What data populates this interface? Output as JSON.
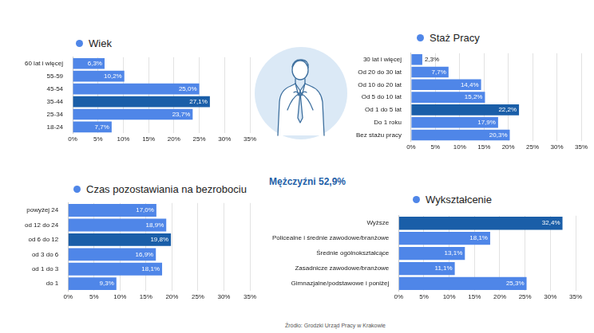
{
  "chart_data": [
    {
      "type": "bar",
      "orientation": "horizontal",
      "title": "Wiek",
      "categories": [
        "60 lat i więcej",
        "55-59",
        "45-54",
        "35-44",
        "25-34",
        "18-24"
      ],
      "values": [
        6.3,
        10.2,
        25.0,
        27.1,
        23.7,
        7.7
      ],
      "value_labels": [
        "6,3%",
        "10,2%",
        "25,0%",
        "27,1%",
        "23,7%",
        "7,7%"
      ],
      "colors": [
        "#4f86e8",
        "#4f86e8",
        "#4f86e8",
        "#1a5ea8",
        "#4f86e8",
        "#4f86e8"
      ],
      "xlim": [
        0,
        35
      ],
      "xticks": [
        {
          "value": 0,
          "label": "0%"
        },
        {
          "value": 5,
          "label": "5%"
        },
        {
          "value": 10,
          "label": "10%"
        },
        {
          "value": 15,
          "label": "15%"
        },
        {
          "value": 20,
          "label": "20%"
        },
        {
          "value": 25,
          "label": "25%"
        },
        {
          "value": 30,
          "label": "30%"
        },
        {
          "value": 35,
          "label": "35%"
        }
      ],
      "grid": true,
      "data_labels": true
    },
    {
      "type": "bar",
      "orientation": "horizontal",
      "title": "Staż Pracy",
      "categories": [
        "30 lat i więcej",
        "Od 20 do 30 lat",
        "Od 10 do 20 lat",
        "Od 5 do 10 lat",
        "Od 1 do 5 lat",
        "Do 1 roku",
        "Bez stażu pracy"
      ],
      "values": [
        2.3,
        7.7,
        14.4,
        15.2,
        22.2,
        17.9,
        20.3
      ],
      "value_labels": [
        "2,3%",
        "7,7%",
        "14,4%",
        "15,2%",
        "22,2%",
        "17,9%",
        "20,3%"
      ],
      "colors": [
        "#4f86e8",
        "#4f86e8",
        "#4f86e8",
        "#4f86e8",
        "#1a5ea8",
        "#4f86e8",
        "#4f86e8"
      ],
      "xlim": [
        0,
        35
      ],
      "xticks": [
        {
          "value": 0,
          "label": "0%"
        },
        {
          "value": 5,
          "label": "5%"
        },
        {
          "value": 10,
          "label": "10%"
        },
        {
          "value": 15,
          "label": "15%"
        },
        {
          "value": 20,
          "label": "20%"
        },
        {
          "value": 25,
          "label": "25%"
        },
        {
          "value": 30,
          "label": "30%"
        },
        {
          "value": 35,
          "label": "35%"
        }
      ],
      "grid": true,
      "data_labels": true
    },
    {
      "type": "bar",
      "orientation": "horizontal",
      "title": "Czas pozostawiania na bezrobociu",
      "categories": [
        "powyżej 24",
        "od 12 do 24",
        "od 6 do 12",
        "od 3 do 6",
        "od 1 do 3",
        "do 1"
      ],
      "values": [
        17.0,
        18.9,
        19.8,
        16.9,
        18.1,
        9.3
      ],
      "value_labels": [
        "17,0%",
        "18,9%",
        "19,8%",
        "16,9%",
        "18,1%",
        "9,3%"
      ],
      "colors": [
        "#4f86e8",
        "#4f86e8",
        "#1a5ea8",
        "#4f86e8",
        "#4f86e8",
        "#4f86e8"
      ],
      "xlim": [
        0,
        35
      ],
      "xticks": [
        {
          "value": 0,
          "label": "0%"
        },
        {
          "value": 5,
          "label": "5%"
        },
        {
          "value": 10,
          "label": "10%"
        },
        {
          "value": 15,
          "label": "15%"
        },
        {
          "value": 20,
          "label": "20%"
        },
        {
          "value": 25,
          "label": "25%"
        },
        {
          "value": 30,
          "label": "30%"
        },
        {
          "value": 35,
          "label": "35%"
        }
      ],
      "grid": true,
      "data_labels": true
    },
    {
      "type": "bar",
      "orientation": "horizontal",
      "title": "Wykształcenie",
      "categories": [
        "Wyższe",
        "Policealne i średnie zawodowe/branżowe",
        "Średnie ogólnokształcące",
        "Zasadnicze zawodowe/branżowe",
        "Gimnazjalne/podstawowe i poniżej"
      ],
      "values": [
        32.4,
        18.1,
        13.1,
        11.1,
        25.3
      ],
      "value_labels": [
        "32,4%",
        "18,1%",
        "13,1%",
        "11,1%",
        "25,3%"
      ],
      "colors": [
        "#1a5ea8",
        "#4f86e8",
        "#4f86e8",
        "#4f86e8",
        "#4f86e8"
      ],
      "xlim": [
        0,
        35
      ],
      "xticks": [
        {
          "value": 0,
          "label": "0%"
        },
        {
          "value": 5,
          "label": "5%"
        },
        {
          "value": 10,
          "label": "10%"
        },
        {
          "value": 15,
          "label": "15%"
        },
        {
          "value": 20,
          "label": "20%"
        },
        {
          "value": 25,
          "label": "25%"
        },
        {
          "value": 30,
          "label": "30%"
        },
        {
          "value": 35,
          "label": "35%"
        }
      ],
      "grid": true,
      "data_labels": true
    }
  ],
  "center_label": "Mężczyźni 52,9%",
  "source": "Źródło: Grodzki Urząd Pracy w Krakowie"
}
